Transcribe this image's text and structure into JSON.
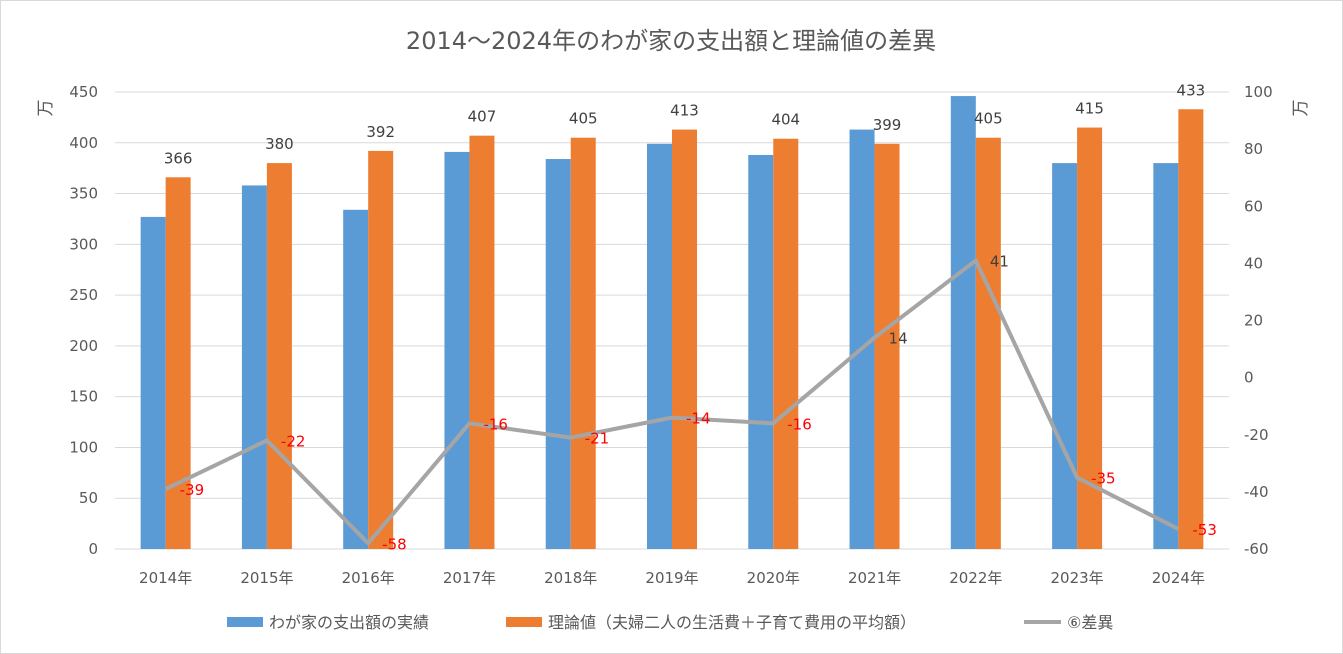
{
  "chart_data": {
    "type": "bar",
    "title": "2014～2024年のわが家の支出額と理論値の差異",
    "categories": [
      "2014年",
      "2015年",
      "2016年",
      "2017年",
      "2018年",
      "2019年",
      "2020年",
      "2021年",
      "2022年",
      "2023年",
      "2024年"
    ],
    "y_left": {
      "label": "万",
      "range": [
        0,
        450
      ],
      "ticks": [
        "0",
        "50",
        "100",
        "150",
        "200",
        "250",
        "300",
        "350",
        "400",
        "450"
      ]
    },
    "y_right": {
      "label": "万",
      "range": [
        -60,
        100
      ],
      "ticks": [
        "-60",
        "-40",
        "-20",
        "0",
        "20",
        "40",
        "60",
        "80",
        "100"
      ]
    },
    "grid": true,
    "legend_position": "bottom",
    "series": [
      {
        "name": "わが家の支出額の実績",
        "type": "bar",
        "axis": "left",
        "color": "#5b9bd5",
        "values": [
          327,
          358,
          334,
          391,
          384,
          399,
          388,
          413,
          446,
          380,
          380
        ]
      },
      {
        "name": "理論値（夫婦二人の生活費＋子育て費用の平均額）",
        "type": "bar",
        "axis": "left",
        "color": "#ed7d31",
        "values": [
          366,
          380,
          392,
          407,
          405,
          413,
          404,
          399,
          405,
          415,
          433
        ],
        "labels": [
          "366",
          "380",
          "392",
          "407",
          "405",
          "413",
          "404",
          "399",
          "405",
          "415",
          "433"
        ]
      },
      {
        "name": "⑥差異",
        "type": "line",
        "axis": "right",
        "color": "#a5a5a5",
        "values": [
          -39,
          -22,
          -58,
          -16,
          -21,
          -14,
          -16,
          14,
          41,
          -35,
          -53
        ],
        "labels": [
          "-39",
          "-22",
          "-58",
          "-16",
          "-21",
          "-14",
          "-16",
          "14",
          "41",
          "-35",
          "-53"
        ]
      }
    ],
    "colors": {
      "negative_label": "#ff0000",
      "positive_label": "#404040",
      "gridline": "#d9d9d9"
    }
  }
}
